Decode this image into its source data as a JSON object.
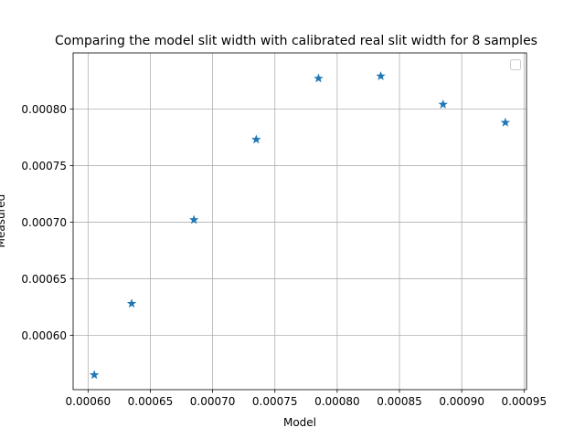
{
  "chart_data": {
    "type": "scatter",
    "title": "Comparing the model slit width with calibrated real slit width for 8 samples",
    "xlabel": "Model",
    "ylabel": "Measured",
    "xlim": [
      0.000588,
      0.000952
    ],
    "ylim": [
      0.000552,
      0.0008495
    ],
    "xticks": [
      0.0006,
      0.00065,
      0.0007,
      0.00075,
      0.0008,
      0.00085,
      0.0009,
      0.00095
    ],
    "xtick_labels": [
      "0.00060",
      "0.00065",
      "0.00070",
      "0.00075",
      "0.00080",
      "0.00085",
      "0.00090",
      "0.00095"
    ],
    "yticks": [
      0.0006,
      0.00065,
      0.0007,
      0.00075,
      0.0008
    ],
    "ytick_labels": [
      "0.00060",
      "0.00065",
      "0.00070",
      "0.00075",
      "0.00080"
    ],
    "grid": true,
    "legend": "top-right (empty)",
    "marker": "star",
    "color": "#1f77b4",
    "x": [
      0.000605,
      0.000635,
      0.000685,
      0.000735,
      0.000785,
      0.000835,
      0.000885,
      0.000935
    ],
    "y": [
      0.000565,
      0.000628,
      0.000702,
      0.000773,
      0.000827,
      0.000829,
      0.000804,
      0.000788
    ]
  }
}
